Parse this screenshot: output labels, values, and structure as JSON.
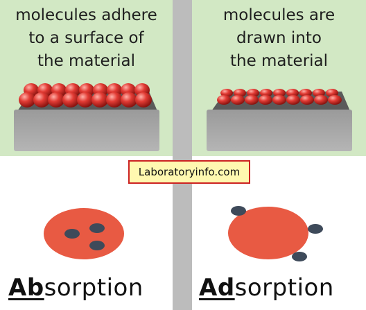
{
  "absorption": {
    "caption": "molecules adhere\nto a surface of\nthe material",
    "title_prefix": "Ab",
    "title_suffix": "sorption"
  },
  "adsorption": {
    "caption": "molecules are\ndrawn into\nthe material",
    "title_prefix": "Ad",
    "title_suffix": "sorption"
  },
  "watermark": "Laboratoryinfo.com",
  "colors": {
    "panel_top": "#d2e8c4",
    "divider": "#bcbcbc",
    "block": "#8e8e8e",
    "sphere": "#e23b34",
    "circle": "#e85a43",
    "dot": "#3e4a5a"
  }
}
